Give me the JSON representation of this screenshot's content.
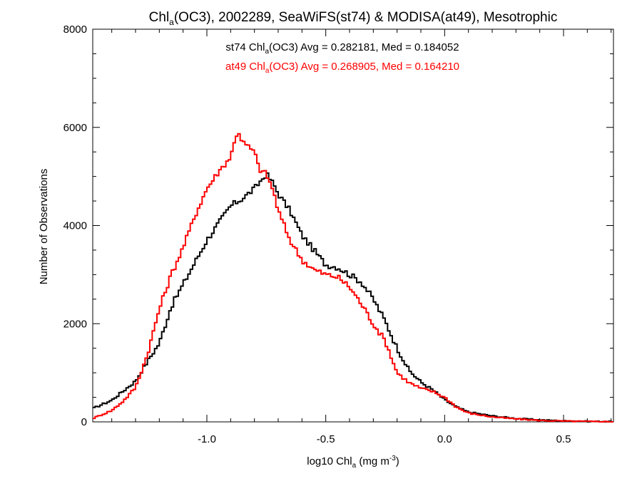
{
  "chart_data": {
    "type": "line",
    "title": {
      "pre": "Chl",
      "sub": "a",
      "post": "(OC3), 2002289, SeaWiFS(st74) & MODISA(at49), Mesotrophic"
    },
    "xlabel": {
      "pre": "log10 Chl",
      "sub": "a",
      "mid": " (mg m",
      "sup": "-3",
      "post": ")"
    },
    "ylabel": "Number of Observations",
    "xlim": [
      -1.48,
      0.71
    ],
    "ylim": [
      0,
      8000
    ],
    "x_ticks": [
      {
        "v": -1.0,
        "label": "-1.0"
      },
      {
        "v": -0.5,
        "label": "-0.5"
      },
      {
        "v": 0.0,
        "label": "0.0"
      },
      {
        "v": 0.5,
        "label": "0.5"
      }
    ],
    "y_ticks": [
      {
        "v": 0,
        "label": "0"
      },
      {
        "v": 2000,
        "label": "2000"
      },
      {
        "v": 4000,
        "label": "4000"
      },
      {
        "v": 6000,
        "label": "6000"
      },
      {
        "v": 8000,
        "label": "8000"
      }
    ],
    "series": [
      {
        "name": "st74",
        "color": "#000000",
        "legend": {
          "pre": "st74 Chl",
          "sub": "a",
          "post": "(OC3) Avg = 0.282181, Med = 0.184052"
        },
        "points": [
          [
            -1.48,
            270
          ],
          [
            -1.4,
            440
          ],
          [
            -1.3,
            830
          ],
          [
            -1.25,
            1230
          ],
          [
            -1.2,
            1600
          ],
          [
            -1.15,
            2350
          ],
          [
            -1.1,
            2800
          ],
          [
            -1.05,
            3250
          ],
          [
            -1.0,
            3700
          ],
          [
            -0.95,
            4050
          ],
          [
            -0.9,
            4400
          ],
          [
            -0.85,
            4550
          ],
          [
            -0.8,
            4750
          ],
          [
            -0.75,
            5050
          ],
          [
            -0.72,
            4850
          ],
          [
            -0.7,
            4650
          ],
          [
            -0.65,
            4300
          ],
          [
            -0.6,
            3800
          ],
          [
            -0.55,
            3500
          ],
          [
            -0.5,
            3200
          ],
          [
            -0.45,
            3150
          ],
          [
            -0.4,
            3000
          ],
          [
            -0.35,
            2850
          ],
          [
            -0.3,
            2500
          ],
          [
            -0.25,
            2050
          ],
          [
            -0.2,
            1500
          ],
          [
            -0.15,
            1050
          ],
          [
            -0.1,
            810
          ],
          [
            -0.05,
            650
          ],
          [
            0.0,
            450
          ],
          [
            0.05,
            300
          ],
          [
            0.1,
            200
          ],
          [
            0.2,
            120
          ],
          [
            0.3,
            70
          ],
          [
            0.4,
            40
          ],
          [
            0.5,
            20
          ],
          [
            0.6,
            10
          ],
          [
            0.71,
            5
          ]
        ]
      },
      {
        "name": "at49",
        "color": "#ff0000",
        "legend": {
          "pre": "at49 Chl",
          "sub": "a",
          "post": "(OC3) Avg = 0.268905, Med = 0.164210"
        },
        "points": [
          [
            -1.48,
            70
          ],
          [
            -1.4,
            230
          ],
          [
            -1.35,
            430
          ],
          [
            -1.3,
            700
          ],
          [
            -1.25,
            1370
          ],
          [
            -1.2,
            2300
          ],
          [
            -1.15,
            3000
          ],
          [
            -1.1,
            3550
          ],
          [
            -1.05,
            4200
          ],
          [
            -1.0,
            4750
          ],
          [
            -0.95,
            5100
          ],
          [
            -0.9,
            5400
          ],
          [
            -0.87,
            5950
          ],
          [
            -0.85,
            5700
          ],
          [
            -0.8,
            5500
          ],
          [
            -0.78,
            5150
          ],
          [
            -0.75,
            5050
          ],
          [
            -0.72,
            4700
          ],
          [
            -0.7,
            4300
          ],
          [
            -0.65,
            3700
          ],
          [
            -0.6,
            3300
          ],
          [
            -0.55,
            3100
          ],
          [
            -0.5,
            3000
          ],
          [
            -0.45,
            2950
          ],
          [
            -0.4,
            2750
          ],
          [
            -0.35,
            2400
          ],
          [
            -0.3,
            2000
          ],
          [
            -0.25,
            1650
          ],
          [
            -0.2,
            1000
          ],
          [
            -0.15,
            800
          ],
          [
            -0.1,
            680
          ],
          [
            -0.05,
            620
          ],
          [
            0.0,
            500
          ],
          [
            0.05,
            300
          ],
          [
            0.1,
            180
          ],
          [
            0.2,
            100
          ],
          [
            0.3,
            60
          ],
          [
            0.4,
            30
          ],
          [
            0.5,
            15
          ],
          [
            0.6,
            8
          ],
          [
            0.71,
            3
          ]
        ]
      }
    ]
  }
}
